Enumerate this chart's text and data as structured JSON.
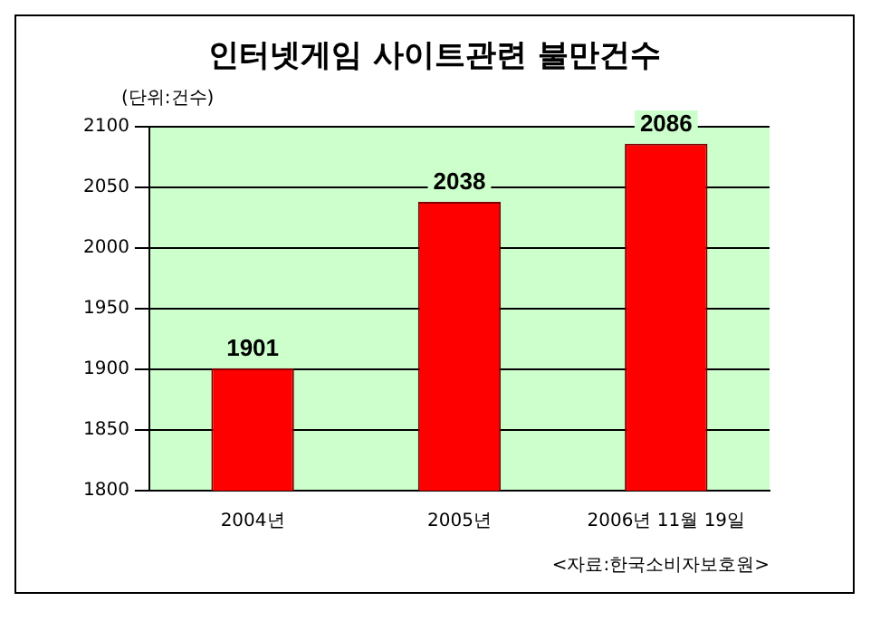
{
  "chart_data": {
    "type": "bar",
    "title": "인터넷게임 사이트관련 불만건수",
    "ylabel": "(단위:건수)",
    "categories": [
      "2004년",
      "2005년",
      "2006년 11월 19일"
    ],
    "values": [
      1901,
      2038,
      2086
    ],
    "color": "#ff0000",
    "ylim": [
      1800,
      2100
    ],
    "yticks": [
      1800,
      1850,
      1900,
      1950,
      2000,
      2050,
      2100
    ],
    "grid": "y",
    "data_labels": true,
    "legend": false,
    "annotations": [
      "<자료:한국소비자보호원>"
    ]
  }
}
